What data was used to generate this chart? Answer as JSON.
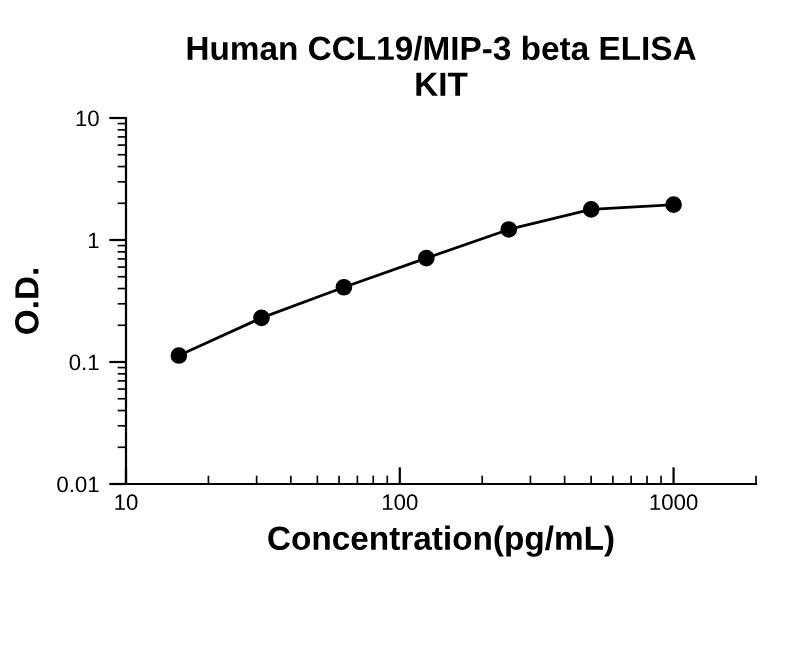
{
  "chart_data": {
    "type": "line",
    "title": "Human CCL19/MIP-3 beta ELISA\nKIT",
    "xlabel": "Concentration(pg/mL)",
    "ylabel": "O.D.",
    "log": "xy",
    "xlim": [
      10,
      2000
    ],
    "ylim": [
      0.01,
      10
    ],
    "xticks": [
      10,
      100,
      1000
    ],
    "yticks": [
      0.01,
      0.1,
      1,
      10
    ],
    "marker": "circle",
    "line_style": "solid",
    "grid": false,
    "legend": false,
    "x": [
      15.6,
      31.25,
      62.5,
      125,
      250,
      500,
      1000
    ],
    "series": [
      {
        "color": "#000000",
        "values": [
          0.113,
          0.23,
          0.41,
          0.71,
          1.22,
          1.78,
          1.95
        ]
      }
    ]
  }
}
